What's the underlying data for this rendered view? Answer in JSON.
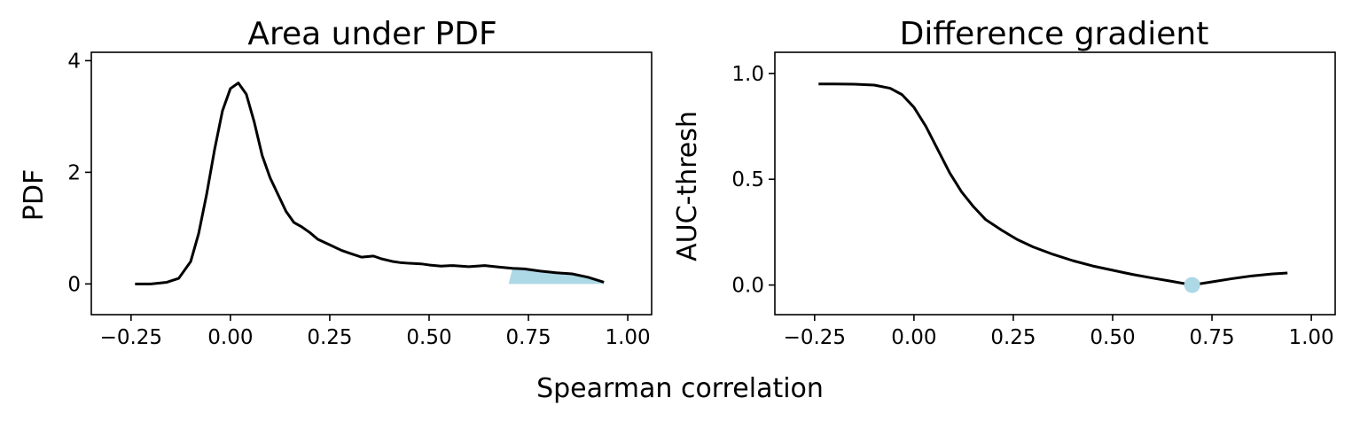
{
  "figure": {
    "shared_xlabel": "Spearman correlation"
  },
  "chart_data": [
    {
      "type": "area",
      "title": "Area under PDF",
      "xlabel": "",
      "ylabel": "PDF",
      "xlim": [
        -0.35,
        1.06
      ],
      "ylim": [
        -0.55,
        4.15
      ],
      "x_ticks": [
        -0.25,
        0.0,
        0.25,
        0.5,
        0.75,
        1.0
      ],
      "x_tick_labels": [
        "−0.25",
        "0.00",
        "0.25",
        "0.50",
        "0.75",
        "1.00"
      ],
      "y_ticks": [
        0,
        2,
        4
      ],
      "y_tick_labels": [
        "0",
        "2",
        "4"
      ],
      "grid": false,
      "line_color": "#000000",
      "fill_color": "#add8e6",
      "shaded_region_x": [
        0.7,
        0.94
      ],
      "series": [
        {
          "x": [
            -0.24,
            -0.2,
            -0.16,
            -0.13,
            -0.1,
            -0.08,
            -0.06,
            -0.04,
            -0.02,
            0.0,
            0.02,
            0.04,
            0.06,
            0.08,
            0.1,
            0.12,
            0.14,
            0.16,
            0.18,
            0.2,
            0.22,
            0.25,
            0.28,
            0.3,
            0.33,
            0.36,
            0.38,
            0.41,
            0.43,
            0.45,
            0.48,
            0.5,
            0.53,
            0.56,
            0.6,
            0.64,
            0.68,
            0.71,
            0.74,
            0.78,
            0.82,
            0.86,
            0.9,
            0.94
          ],
          "y": [
            0.0,
            0.0,
            0.03,
            0.1,
            0.4,
            0.9,
            1.6,
            2.4,
            3.1,
            3.5,
            3.6,
            3.4,
            2.9,
            2.3,
            1.9,
            1.6,
            1.3,
            1.1,
            1.02,
            0.92,
            0.8,
            0.7,
            0.6,
            0.55,
            0.48,
            0.5,
            0.45,
            0.4,
            0.38,
            0.37,
            0.36,
            0.34,
            0.32,
            0.33,
            0.31,
            0.33,
            0.3,
            0.28,
            0.27,
            0.23,
            0.2,
            0.18,
            0.12,
            0.03
          ]
        }
      ]
    },
    {
      "type": "line",
      "title": "Difference gradient",
      "xlabel": "",
      "ylabel": "AUC-thresh",
      "xlim": [
        -0.35,
        1.06
      ],
      "ylim": [
        -0.14,
        1.1
      ],
      "x_ticks": [
        -0.25,
        0.0,
        0.25,
        0.5,
        0.75,
        1.0
      ],
      "x_tick_labels": [
        "−0.25",
        "0.00",
        "0.25",
        "0.50",
        "0.75",
        "1.00"
      ],
      "y_ticks": [
        0.0,
        0.5,
        1.0
      ],
      "y_tick_labels": [
        "0.0",
        "0.5",
        "1.0"
      ],
      "grid": false,
      "line_color": "#000000",
      "marker": {
        "x": 0.7,
        "y": 0.0,
        "color": "#add8e6"
      },
      "series": [
        {
          "x": [
            -0.24,
            -0.2,
            -0.15,
            -0.1,
            -0.06,
            -0.03,
            0.0,
            0.03,
            0.06,
            0.09,
            0.12,
            0.15,
            0.18,
            0.22,
            0.26,
            0.3,
            0.35,
            0.4,
            0.45,
            0.5,
            0.55,
            0.6,
            0.65,
            0.7,
            0.75,
            0.8,
            0.85,
            0.9,
            0.94
          ],
          "y": [
            0.95,
            0.95,
            0.949,
            0.945,
            0.93,
            0.9,
            0.84,
            0.75,
            0.64,
            0.53,
            0.44,
            0.37,
            0.31,
            0.26,
            0.215,
            0.18,
            0.145,
            0.115,
            0.09,
            0.07,
            0.05,
            0.033,
            0.017,
            0.0,
            0.015,
            0.03,
            0.043,
            0.052,
            0.057
          ]
        }
      ]
    }
  ]
}
